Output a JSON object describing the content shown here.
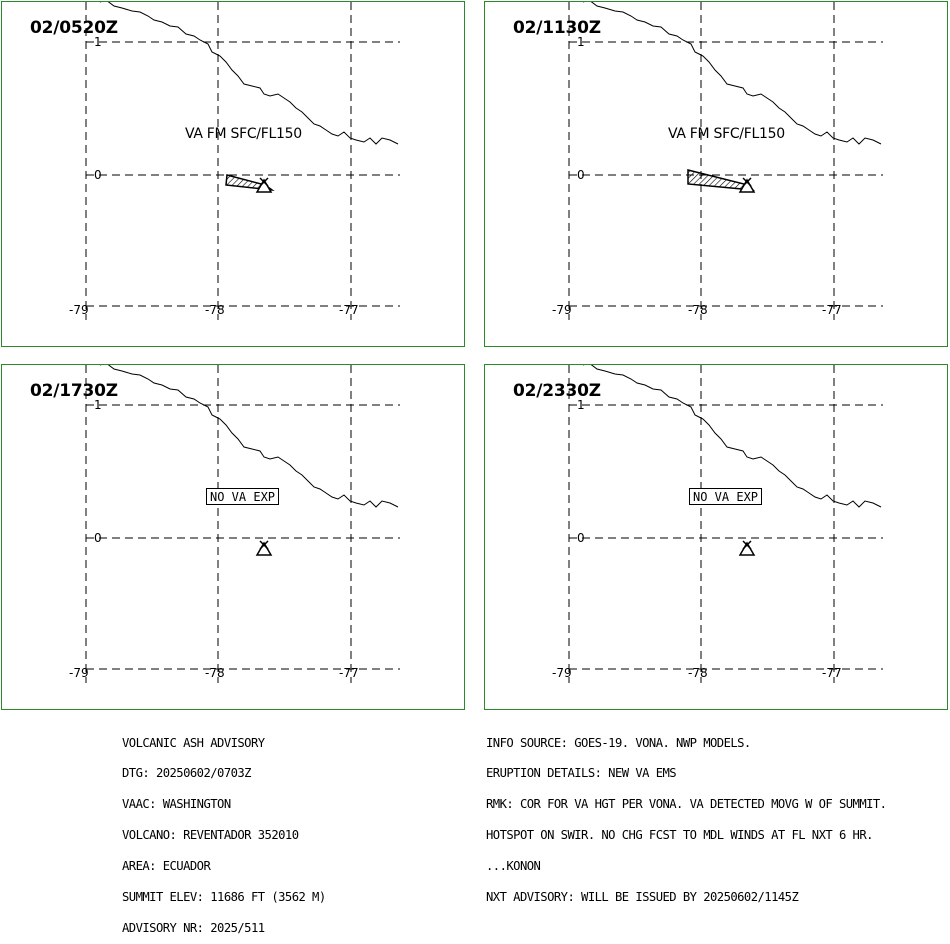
{
  "map": {
    "lat_labels": [
      "1",
      "0"
    ],
    "lon_labels": [
      "-79",
      "-78",
      "-77"
    ],
    "volcano_marker": "volcano-triangle-icon",
    "colors": {
      "panel_border": "#2a8a2a",
      "lines": "#000000"
    }
  },
  "panels": [
    {
      "time": "02/0520Z",
      "ash_label": "VA FM SFC/FL150",
      "ash_polygon": true
    },
    {
      "time": "02/1130Z",
      "ash_label": "VA FM SFC/FL150",
      "ash_polygon": true
    },
    {
      "time": "02/1730Z",
      "ash_label": "NO VA EXP",
      "ash_polygon": false
    },
    {
      "time": "02/2330Z",
      "ash_label": "NO VA EXP",
      "ash_polygon": false
    }
  ],
  "advisory": {
    "title": "VOLCANIC ASH ADVISORY",
    "dtg": "DTG: 20250602/0703Z",
    "vaac": "VAAC: WASHINGTON",
    "volcano": "VOLCANO: REVENTADOR 352010",
    "area": "AREA: ECUADOR",
    "summit": "SUMMIT ELEV: 11686 FT (3562 M)",
    "number": "ADVISORY NR: 2025/511"
  },
  "details": {
    "info_source": "INFO SOURCE: GOES-19. VONA. NWP MODELS.",
    "eruption": "ERUPTION DETAILS: NEW VA EMS",
    "rmk1": "RMK: COR FOR VA HGT PER VONA. VA DETECTED MOVG W OF SUMMIT.",
    "rmk2": "HOTSPOT ON SWIR. NO CHG FCST TO MDL WINDS AT FL NXT 6 HR.",
    "signature": "...KONON",
    "next": "NXT ADVISORY: WILL BE ISSUED BY 20250602/1145Z"
  }
}
